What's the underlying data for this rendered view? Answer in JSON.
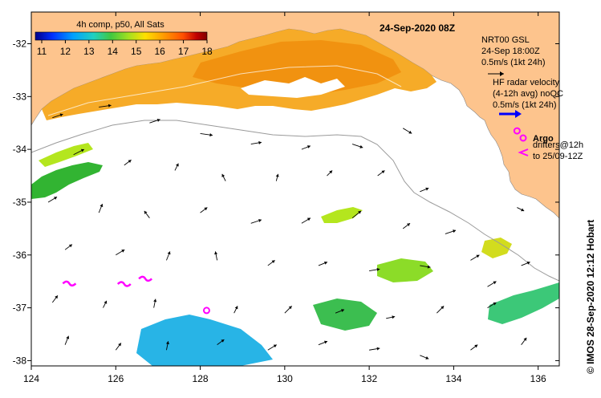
{
  "map": {
    "date_title": "24-Sep-2020 08Z",
    "credit": "© IMOS 28-Sep-2020 12:12 Hobart",
    "colorbar": {
      "title": "4h comp, p50, All Sats",
      "ticks": [
        "11",
        "12",
        "13",
        "14",
        "15",
        "16",
        "17",
        "18"
      ],
      "min": 11,
      "max": 18,
      "colors": [
        "#00008b",
        "#0030ff",
        "#00a0ff",
        "#20d0c0",
        "#40c840",
        "#a0e020",
        "#ffe000",
        "#ffa000",
        "#ff5000",
        "#c00000",
        "#800000"
      ]
    },
    "x_ticks": [
      "124",
      "126",
      "128",
      "130",
      "132",
      "134",
      "136"
    ],
    "y_ticks": [
      "-32",
      "-33",
      "-34",
      "-35",
      "-36",
      "-37",
      "-38"
    ],
    "lon_range": [
      124,
      136.5
    ],
    "lat_range": [
      -38.1,
      -31.4
    ],
    "legend": {
      "nrt_line1": "NRT00 GSL",
      "nrt_line2": "24-Sep 18:00Z",
      "nrt_line3": "0.5m/s (1kt 24h)",
      "hf_line1": "HF radar velocity",
      "hf_line2": "(4-12h avg) noQC",
      "hf_line3": "0.5m/s (1kt 24h)",
      "argo_label": "Argo",
      "drifters_line1": "drifters@12h",
      "drifters_line2": "to 25/09-12Z"
    },
    "colors": {
      "land": "#fdc48d",
      "sea": "#ffffff",
      "argo": "#ff00ff",
      "hf_radar": "#0000ff",
      "isobath": "#999999"
    },
    "features": {
      "drifters": [
        [
          124.9,
          -36.54
        ],
        [
          126.7,
          -36.45
        ],
        [
          126.2,
          -36.55
        ]
      ],
      "argo_floats": [
        [
          128.15,
          -37.05
        ],
        [
          135.5,
          -33.65
        ]
      ],
      "vectors": [
        [
          124.5,
          -33.4,
          0.6,
          0.2
        ],
        [
          125.6,
          -33.2,
          0.7,
          0.1
        ],
        [
          126.8,
          -33.5,
          0.6,
          0.2
        ],
        [
          128.0,
          -33.7,
          0.7,
          -0.1
        ],
        [
          129.2,
          -33.9,
          0.6,
          0.1
        ],
        [
          130.4,
          -34.0,
          0.5,
          0.2
        ],
        [
          131.6,
          -33.9,
          0.6,
          -0.2
        ],
        [
          132.8,
          -33.6,
          0.5,
          -0.3
        ],
        [
          125.0,
          -34.1,
          0.6,
          0.3
        ],
        [
          126.2,
          -34.3,
          0.4,
          0.3
        ],
        [
          127.4,
          -34.4,
          0.2,
          0.4
        ],
        [
          128.6,
          -34.6,
          -0.2,
          0.4
        ],
        [
          129.8,
          -34.6,
          0.1,
          0.4
        ],
        [
          131.0,
          -34.5,
          0.3,
          0.3
        ],
        [
          132.2,
          -34.5,
          0.4,
          0.3
        ],
        [
          133.2,
          -34.8,
          0.5,
          0.2
        ],
        [
          124.4,
          -35.0,
          0.5,
          0.3
        ],
        [
          125.6,
          -35.2,
          0.2,
          0.5
        ],
        [
          126.8,
          -35.3,
          -0.3,
          0.4
        ],
        [
          128.0,
          -35.2,
          0.4,
          0.3
        ],
        [
          129.2,
          -35.4,
          0.6,
          0.2
        ],
        [
          130.4,
          -35.4,
          0.5,
          0.3
        ],
        [
          131.6,
          -35.3,
          0.5,
          0.4
        ],
        [
          132.8,
          -35.5,
          0.4,
          0.3
        ],
        [
          124.8,
          -35.9,
          0.4,
          0.3
        ],
        [
          126.0,
          -36.0,
          0.5,
          0.3
        ],
        [
          127.2,
          -36.1,
          0.2,
          0.5
        ],
        [
          128.4,
          -36.1,
          -0.1,
          0.5
        ],
        [
          129.6,
          -36.2,
          0.4,
          0.3
        ],
        [
          130.8,
          -36.2,
          0.5,
          0.2
        ],
        [
          132.0,
          -36.3,
          0.6,
          0.1
        ],
        [
          133.2,
          -36.2,
          0.6,
          -0.1
        ],
        [
          134.4,
          -36.1,
          0.5,
          0.3
        ],
        [
          135.6,
          -36.2,
          0.5,
          0.2
        ],
        [
          124.5,
          -36.9,
          0.3,
          0.4
        ],
        [
          125.7,
          -37.0,
          0.2,
          0.4
        ],
        [
          126.9,
          -37.0,
          0.1,
          0.5
        ],
        [
          128.8,
          -37.1,
          0.2,
          0.4
        ],
        [
          130.0,
          -37.1,
          0.4,
          0.4
        ],
        [
          131.2,
          -37.1,
          0.5,
          0.2
        ],
        [
          132.4,
          -37.2,
          0.5,
          0.1
        ],
        [
          133.6,
          -37.1,
          0.4,
          0.4
        ],
        [
          134.8,
          -37.0,
          0.5,
          0.3
        ],
        [
          124.8,
          -37.7,
          0.2,
          0.5
        ],
        [
          126.0,
          -37.8,
          0.3,
          0.4
        ],
        [
          127.2,
          -37.8,
          0.1,
          0.5
        ],
        [
          128.4,
          -37.7,
          0.4,
          0.3
        ],
        [
          129.6,
          -37.8,
          0.5,
          0.3
        ],
        [
          130.8,
          -37.7,
          0.5,
          0.2
        ],
        [
          132.0,
          -37.8,
          0.6,
          0.1
        ],
        [
          133.2,
          -37.9,
          0.5,
          -0.2
        ],
        [
          134.4,
          -37.8,
          0.4,
          0.3
        ],
        [
          135.6,
          -37.7,
          0.3,
          0.4
        ],
        [
          133.8,
          -35.6,
          0.6,
          0.2
        ],
        [
          134.8,
          -36.6,
          0.5,
          0.3
        ],
        [
          135.5,
          -35.1,
          0.4,
          -0.2
        ]
      ]
    }
  }
}
